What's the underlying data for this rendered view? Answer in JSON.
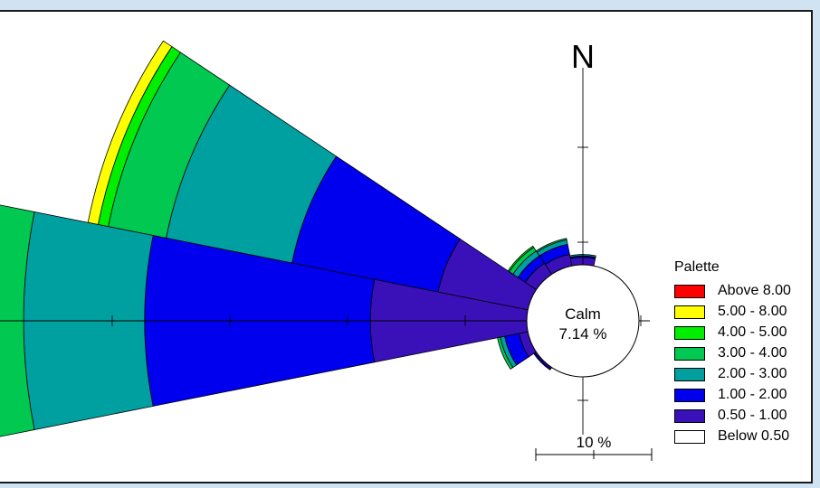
{
  "chart_data": {
    "type": "wind-rose",
    "north_label": "N",
    "calm": {
      "label": "Calm",
      "value_text": "7.14 %",
      "percent": 7.14
    },
    "scale": {
      "label": "10 %",
      "percent": 10
    },
    "legend": {
      "title": "Palette",
      "classes": [
        {
          "label": "Above 8.00",
          "color": "#ff0000"
        },
        {
          "label": "5.00 - 8.00",
          "color": "#ffff00"
        },
        {
          "label": "4.00 - 5.00",
          "color": "#00ee00"
        },
        {
          "label": "3.00 - 4.00",
          "color": "#00c850"
        },
        {
          "label": "2.00 - 3.00",
          "color": "#00a0a0"
        },
        {
          "label": "1.00 - 2.00",
          "color": "#0000ee"
        },
        {
          "label": "0.50 - 1.00",
          "color": "#3a10b8"
        },
        {
          "label": "Below 0.50",
          "color": "#ffffff"
        }
      ]
    },
    "direction_bins": 16,
    "series_order": [
      "0.50 - 1.00",
      "1.00 - 2.00",
      "2.00 - 3.00",
      "3.00 - 4.00",
      "4.00 - 5.00",
      "5.00 - 8.00",
      "Above 8.00"
    ],
    "petals": [
      {
        "direction": "N",
        "cumulative_percent": [
          0.5,
          0.6,
          0.7,
          0.7,
          0.7,
          0.7,
          0.7
        ]
      },
      {
        "direction": "NNW",
        "cumulative_percent": [
          0.8,
          1.5,
          1.8,
          1.9,
          1.9,
          1.9,
          1.9
        ]
      },
      {
        "direction": "NW",
        "cumulative_percent": [
          0.9,
          1.5,
          1.9,
          2.2,
          2.3,
          2.3,
          2.3
        ]
      },
      {
        "direction": "WNW",
        "cumulative_percent": [
          6.2,
          16.3,
          25.0,
          29.0,
          29.7,
          30.4,
          30.4
        ]
      },
      {
        "direction": "W",
        "cumulative_percent": [
          10.6,
          25.9,
          34.1,
          37.1,
          37.5,
          37.5,
          37.5
        ]
      },
      {
        "direction": "WSW",
        "cumulative_percent": [
          0.6,
          1.6,
          1.9,
          2.1,
          2.1,
          2.1,
          2.1
        ]
      },
      {
        "direction": "SW",
        "cumulative_percent": [
          0.1,
          0.2,
          0.2,
          0.2,
          0.2,
          0.2,
          0.2
        ]
      }
    ]
  }
}
